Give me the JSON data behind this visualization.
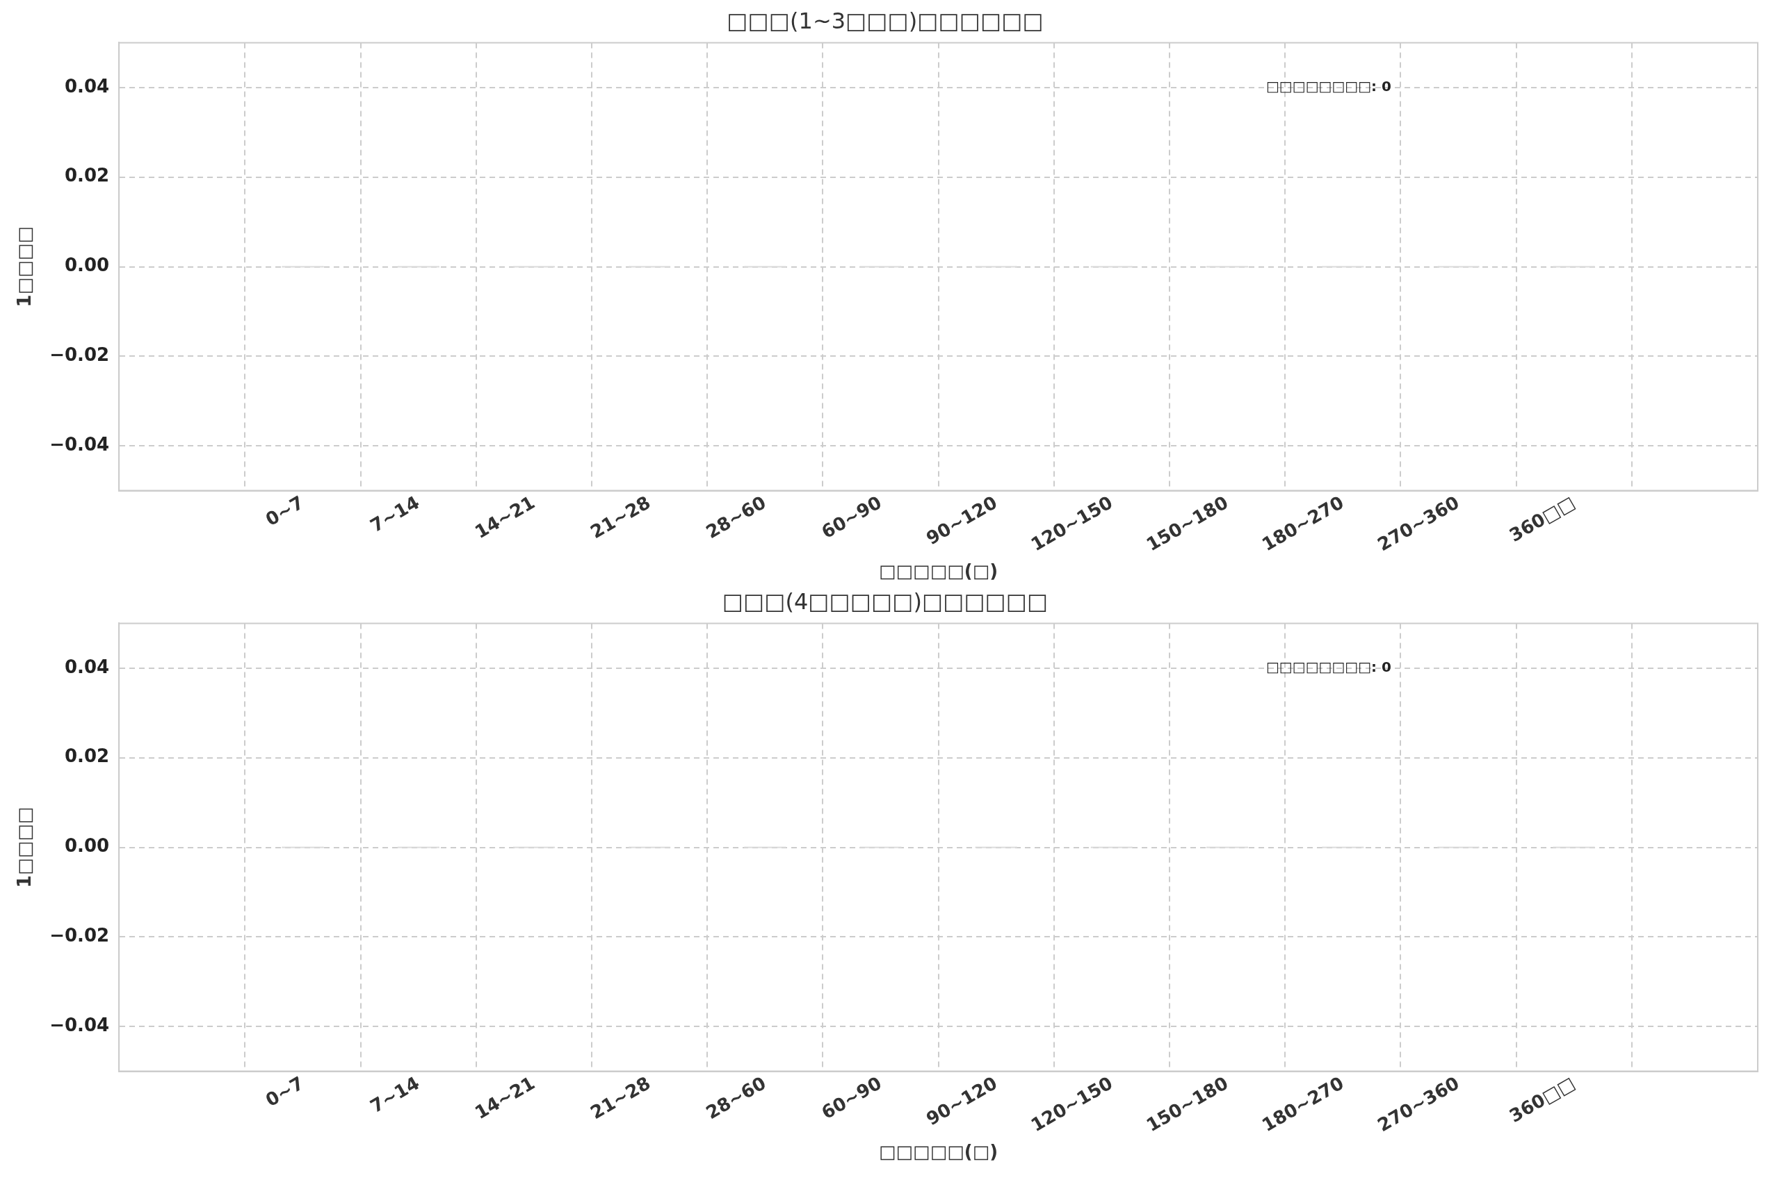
{
  "chart_data": [
    {
      "type": "bar",
      "title": "□□□(1~3□□□)□□□□□□",
      "xlabel": "□□□□□(□)",
      "ylabel": "1□□□□",
      "categories": [
        "0~7",
        "7~14",
        "14~21",
        "21~28",
        "28~60",
        "60~90",
        "90~120",
        "120~150",
        "150~180",
        "180~270",
        "270~360",
        "360□□"
      ],
      "values": [
        0,
        0,
        0,
        0,
        0,
        0,
        0,
        0,
        0,
        0,
        0,
        0
      ],
      "color": "#d9d9d9",
      "ylim": [
        -0.05,
        0.05
      ],
      "yticks": [
        -0.04,
        -0.02,
        {
          "value": 0,
          "label": "0.00"
        },
        0.02,
        0.04
      ],
      "grid": true,
      "legend": false,
      "annotations": [
        "□□□□□□□□: 0"
      ]
    },
    {
      "type": "bar",
      "title": "□□□(4□□□□□)□□□□□□",
      "xlabel": "□□□□□(□)",
      "ylabel": "1□□□□",
      "categories": [
        "0~7",
        "7~14",
        "14~21",
        "21~28",
        "28~60",
        "60~90",
        "90~120",
        "120~150",
        "150~180",
        "180~270",
        "270~360",
        "360□□"
      ],
      "values": [
        0,
        0,
        0,
        0,
        0,
        0,
        0,
        0,
        0,
        0,
        0,
        0
      ],
      "color": "#d9d9d9",
      "ylim": [
        -0.05,
        0.05
      ],
      "yticks": [
        -0.04,
        -0.02,
        {
          "value": 0,
          "label": "0.00"
        },
        0.02,
        0.04
      ],
      "grid": true,
      "legend": false,
      "annotations": [
        "□□□□□□□□: 0"
      ]
    }
  ]
}
